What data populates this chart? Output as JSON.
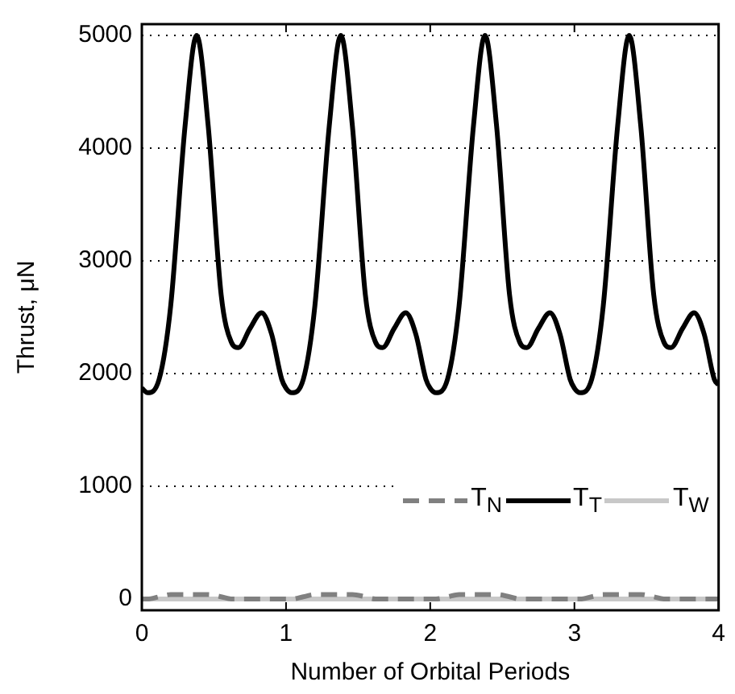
{
  "chart_data": {
    "type": "line",
    "xlabel": "Number of Orbital Periods",
    "ylabel": "Thrust, μN",
    "x": [
      0,
      0.04,
      0.12,
      0.2,
      0.3,
      0.38,
      0.46,
      0.55,
      0.62,
      0.67,
      0.75,
      0.83,
      0.9,
      0.97,
      1,
      1.04,
      1.12,
      1.2,
      1.3,
      1.38,
      1.46,
      1.55,
      1.62,
      1.67,
      1.75,
      1.83,
      1.9,
      1.97,
      2,
      2.04,
      2.12,
      2.2,
      2.3,
      2.38,
      2.46,
      2.55,
      2.62,
      2.67,
      2.75,
      2.83,
      2.9,
      2.97,
      3,
      3.04,
      3.12,
      3.2,
      3.3,
      3.38,
      3.46,
      3.55,
      3.62,
      3.67,
      3.75,
      3.83,
      3.9,
      3.97,
      4
    ],
    "series": [
      {
        "name": "T$_{N}$",
        "color": "#808080",
        "line_style": "dashed",
        "values": [
          0,
          0,
          20,
          40,
          40,
          40,
          40,
          20,
          0,
          0,
          0,
          0,
          0,
          0,
          0,
          0,
          20,
          40,
          40,
          40,
          40,
          20,
          0,
          0,
          0,
          0,
          0,
          0,
          0,
          0,
          20,
          40,
          40,
          40,
          40,
          20,
          0,
          0,
          0,
          0,
          0,
          0,
          0,
          0,
          20,
          40,
          40,
          40,
          40,
          20,
          0,
          0,
          0,
          0,
          0,
          0,
          0
        ]
      },
      {
        "name": "T$_{T}$",
        "color": "#000000",
        "line_style": "solid",
        "values": [
          1870,
          1830,
          1950,
          2600,
          4200,
          5000,
          4200,
          2700,
          2280,
          2230,
          2400,
          2540,
          2350,
          1950,
          1870,
          1830,
          1950,
          2600,
          4200,
          5000,
          4200,
          2700,
          2280,
          2230,
          2400,
          2540,
          2350,
          1950,
          1870,
          1830,
          1950,
          2600,
          4200,
          5000,
          4200,
          2700,
          2280,
          2230,
          2400,
          2540,
          2350,
          1950,
          1870,
          1830,
          1950,
          2600,
          4200,
          5000,
          4200,
          2700,
          2280,
          2230,
          2400,
          2540,
          2350,
          1950,
          1900
        ]
      },
      {
        "name": "T$_{W}$",
        "color": "#c8c8c8",
        "line_style": "solid",
        "values": [
          0,
          0,
          0,
          0,
          0,
          0,
          0,
          0,
          0,
          0,
          0,
          0,
          0,
          0,
          0,
          0,
          0,
          0,
          0,
          0,
          0,
          0,
          0,
          0,
          0,
          0,
          0,
          0,
          0,
          0,
          0,
          0,
          0,
          0,
          0,
          0,
          0,
          0,
          0,
          0,
          0,
          0,
          0,
          0,
          0,
          0,
          0,
          0,
          0,
          0,
          0,
          0,
          0,
          0,
          0,
          0,
          0
        ]
      }
    ],
    "xlim": [
      0,
      4
    ],
    "xticks": [
      0,
      1,
      2,
      3,
      4
    ],
    "ylim": [
      -100,
      5100
    ],
    "yticks": [
      0,
      1000,
      2000,
      3000,
      4000,
      5000
    ],
    "grid": "y",
    "legend": "bottom right",
    "marker": "none"
  }
}
